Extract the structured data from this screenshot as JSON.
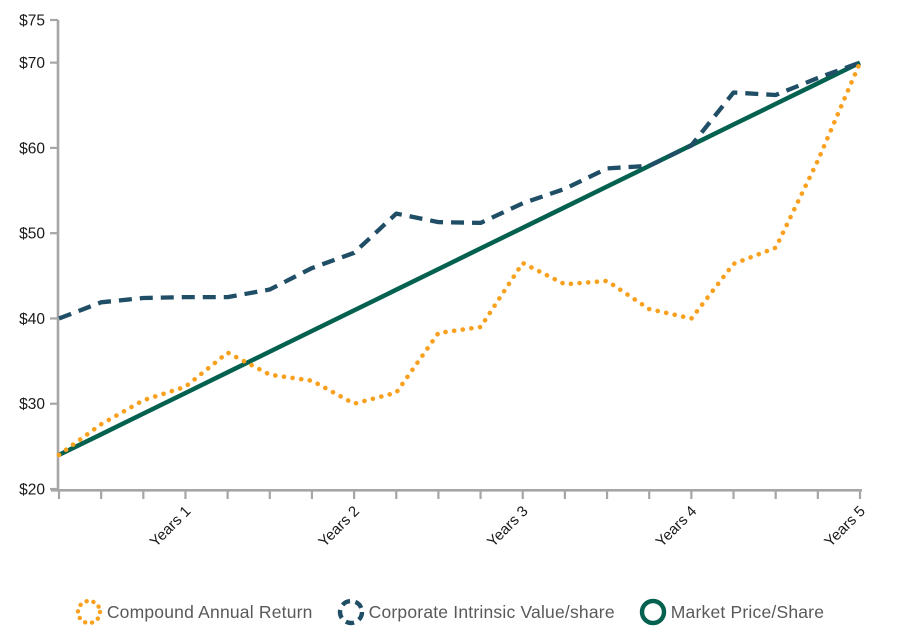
{
  "chart_data": {
    "type": "line",
    "title": "",
    "xlabel": "",
    "ylabel": "",
    "grid": false,
    "legend_position": "bottom",
    "x_tick_count": 20,
    "x_unit": "quarters",
    "x_year_labels": [
      {
        "label": "Years 1",
        "index": 3
      },
      {
        "label": "Years 2",
        "index": 7
      },
      {
        "label": "Years 3",
        "index": 11
      },
      {
        "label": "Years 4",
        "index": 15
      },
      {
        "label": "Years 5",
        "index": 19
      }
    ],
    "y_axis": {
      "min": 20,
      "max": 75,
      "ticks": [
        {
          "label": "$20",
          "value": 20
        },
        {
          "label": "$30",
          "value": 30
        },
        {
          "label": "$40",
          "value": 40
        },
        {
          "label": "$50",
          "value": 50
        },
        {
          "label": "$60",
          "value": 60
        },
        {
          "label": "$70",
          "value": 70
        },
        {
          "label": "$75",
          "value": 75
        }
      ]
    },
    "series": [
      {
        "name": "Compound Annual Return",
        "style": "dotted",
        "color": "#F9A01F",
        "values": [
          24,
          27.6,
          30.4,
          32,
          36,
          33.4,
          32.7,
          30,
          31.3,
          38.3,
          39,
          46.5,
          44,
          44.4,
          41.1,
          40,
          46.4,
          48.3,
          58.5,
          70
        ]
      },
      {
        "name": "Corporate Intrinsic Value/share",
        "style": "dashed",
        "color": "#1F4E66",
        "values": [
          40,
          41.9,
          42.4,
          42.5,
          42.5,
          43.4,
          45.9,
          47.7,
          52.3,
          51.3,
          51.2,
          53.5,
          55.2,
          57.6,
          57.9,
          60.3,
          66.5,
          66.2,
          68.2,
          70
        ]
      },
      {
        "name": "Market Price/Share",
        "style": "solid",
        "color": "#04614F",
        "values": [
          24,
          26.42,
          28.84,
          31.26,
          33.68,
          36.11,
          38.53,
          40.95,
          43.37,
          45.79,
          48.21,
          50.63,
          53.05,
          55.47,
          57.89,
          60.32,
          62.74,
          65.16,
          67.58,
          70
        ]
      }
    ],
    "colors": {
      "axis": "#A6A6A6",
      "tick_label": "#1a1a1a",
      "legend_text": "#595959"
    }
  }
}
